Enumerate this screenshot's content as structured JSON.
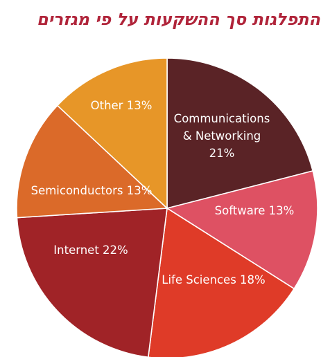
{
  "chart_data": {
    "type": "pie",
    "title": "התפלגות סך ההשקעות על פי מגזרים",
    "slices": [
      {
        "name": "Communications & Networking",
        "value": 21,
        "label_lines": [
          "Communications",
          "& Networking",
          "21%"
        ],
        "color": "#5a2326"
      },
      {
        "name": "Software",
        "value": 13,
        "label_lines": [
          "Software 13%"
        ],
        "color": "#de5163"
      },
      {
        "name": "Life Sciences",
        "value": 18,
        "label_lines": [
          "Life Sciences 18%"
        ],
        "color": "#df3b28"
      },
      {
        "name": "Internet",
        "value": 22,
        "label_lines": [
          "Internet 22%"
        ],
        "color": "#a02327"
      },
      {
        "name": "Semiconductors",
        "value": 13,
        "label_lines": [
          "Semiconductors 13%"
        ],
        "color": "#db6a29"
      },
      {
        "name": "Other",
        "value": 13,
        "label_lines": [
          "Other 13%"
        ],
        "color": "#e79628"
      }
    ]
  }
}
